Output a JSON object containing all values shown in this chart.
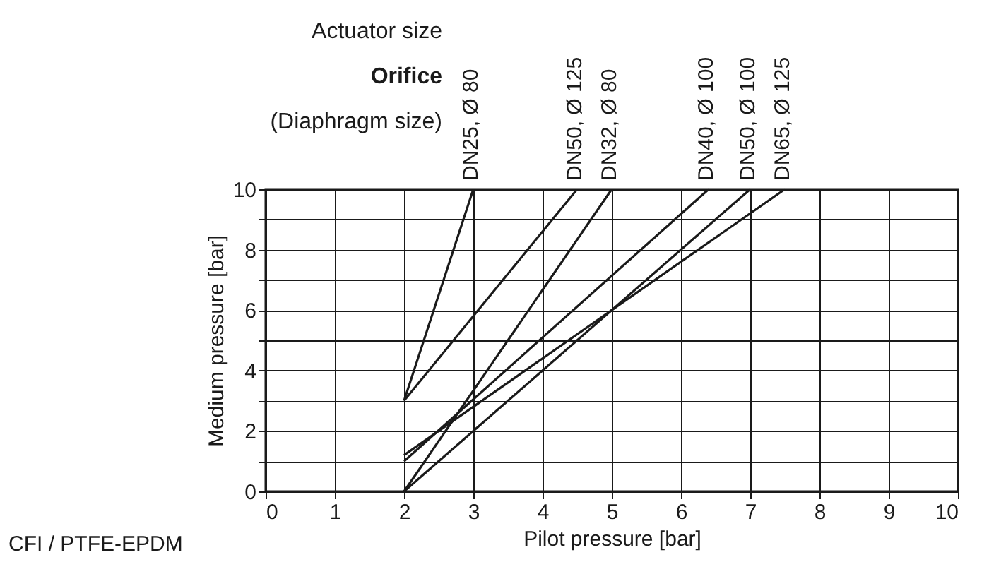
{
  "chart_data": {
    "type": "line",
    "xlabel": "Pilot pressure [bar]",
    "ylabel": "Medium pressure [bar]",
    "annotations": [
      "Actuator size",
      "Orifice",
      "(Diaphragm size)",
      "CFI / PTFE-EPDM"
    ],
    "xlim": [
      0,
      10
    ],
    "xticks": [
      0,
      1,
      2,
      3,
      4,
      5,
      6,
      7,
      8,
      9,
      10
    ],
    "ylim": [
      0,
      10
    ],
    "yticks": [
      0,
      {
        "value": 1,
        "label": null
      },
      2,
      {
        "value": 3,
        "label": null
      },
      4,
      {
        "value": 5,
        "label": null
      },
      6,
      {
        "value": 7,
        "label": null
      },
      8,
      {
        "value": 9,
        "label": null
      },
      10
    ],
    "grid": true,
    "legend": false,
    "marker": "none",
    "line_style": "solid",
    "series": [
      {
        "name": "DN25, Ø 80",
        "color": "#1a1a1a",
        "x": [
          2,
          3
        ],
        "values": [
          3,
          10
        ]
      },
      {
        "name": "DN50, Ø 125",
        "color": "#1a1a1a",
        "x": [
          2,
          4.5
        ],
        "values": [
          3,
          10
        ]
      },
      {
        "name": "DN32, Ø 80",
        "color": "#1a1a1a",
        "x": [
          2,
          5
        ],
        "values": [
          0,
          10
        ]
      },
      {
        "name": "DN40, Ø 100",
        "color": "#1a1a1a",
        "x": [
          2,
          6.4
        ],
        "values": [
          1,
          10
        ]
      },
      {
        "name": "DN50, Ø 100",
        "color": "#1a1a1a",
        "x": [
          2,
          7
        ],
        "values": [
          0,
          10
        ]
      },
      {
        "name": "DN65, Ø 125",
        "color": "#1a1a1a",
        "x": [
          2,
          7.5
        ],
        "values": [
          1.2,
          10
        ]
      }
    ]
  }
}
